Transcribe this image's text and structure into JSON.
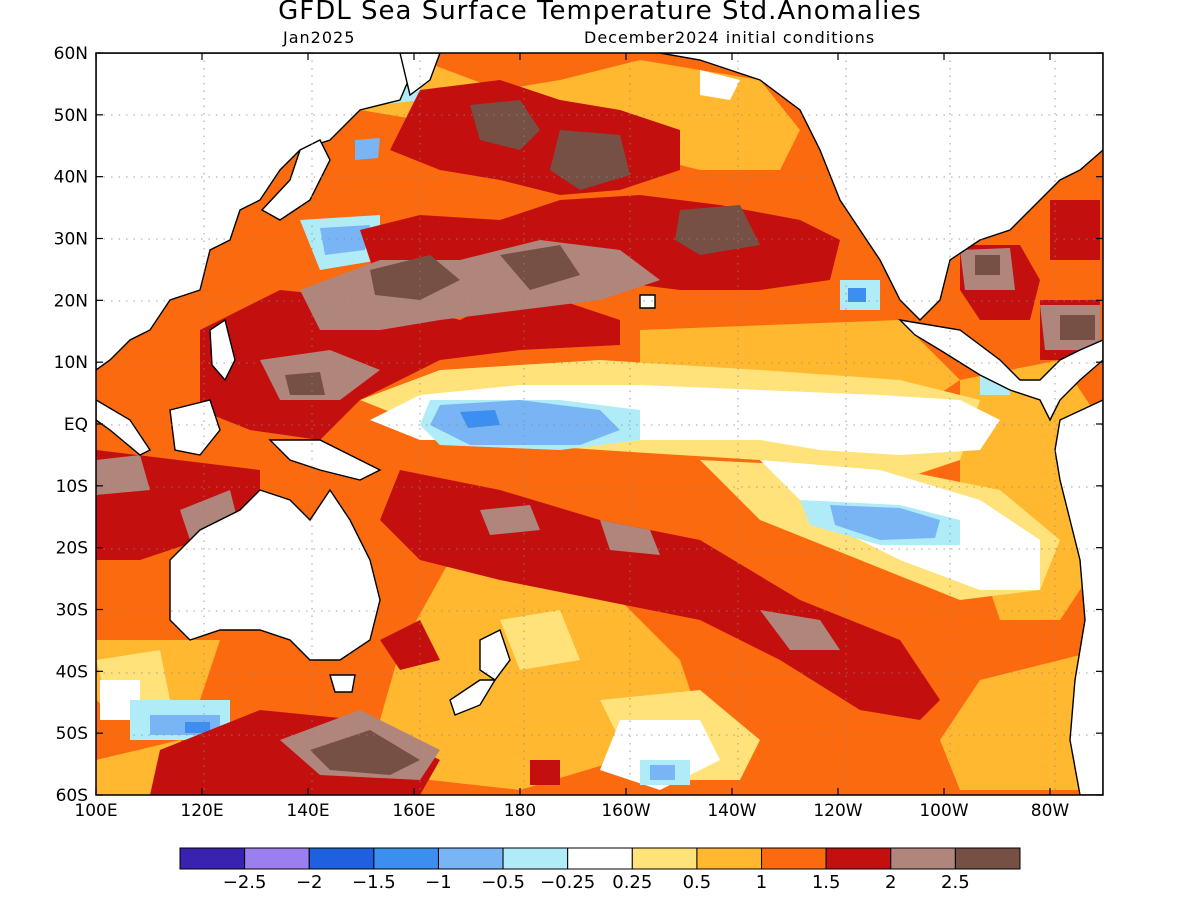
{
  "title": "GFDL Sea Surface Temperature Std.Anomalies",
  "subtitle_left": "Jan2025",
  "subtitle_right": "December2024 initial conditions",
  "y_ticks": [
    "60N",
    "50N",
    "40N",
    "30N",
    "20N",
    "10N",
    "EQ",
    "10S",
    "20S",
    "30S",
    "40S",
    "50S",
    "60S"
  ],
  "x_ticks": [
    "100E",
    "120E",
    "140E",
    "160E",
    "180",
    "160W",
    "140W",
    "120W",
    "100W",
    "80W"
  ],
  "colorbar": {
    "colors": [
      "#3a22b0",
      "#9b7ff0",
      "#1f60e0",
      "#3c8ef0",
      "#79b5f5",
      "#b0ecf8",
      "#ffffff",
      "#ffe27a",
      "#ffb830",
      "#fb6a0e",
      "#c40f0f",
      "#b0867c",
      "#775045"
    ],
    "labels": [
      "−2.5",
      "−2",
      "−1.5",
      "−1",
      "−0.5",
      "−0.25",
      "0.25",
      "0.5",
      "1",
      "1.5",
      "2",
      "2.5"
    ]
  },
  "palette": {
    "warm_strong": "#775045",
    "warm_2": "#b0867c",
    "warm_1_5": "#c40f0f",
    "warm_1": "#fb6a0e",
    "warm_0_5": "#ffb830",
    "warm_0_25": "#ffe27a",
    "neutral": "#ffffff",
    "cool_0_25": "#b0ecf8",
    "cool_0_5": "#79b5f5",
    "cool_1": "#3c8ef0"
  }
}
